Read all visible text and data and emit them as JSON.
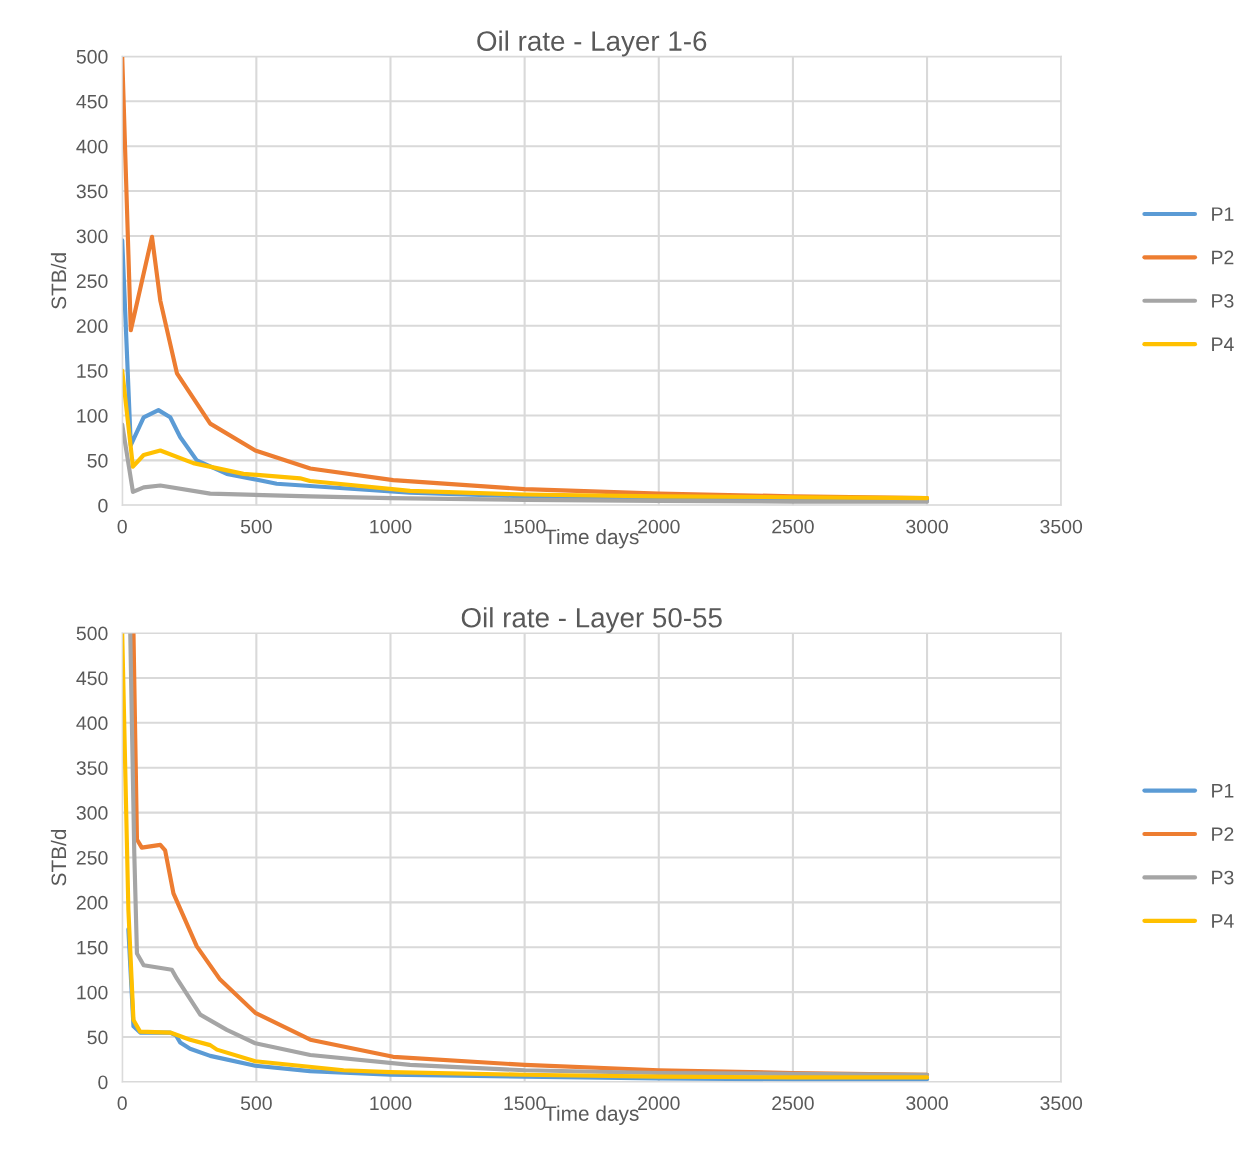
{
  "chart_data": [
    {
      "type": "line",
      "title": "Oil rate - Layer 1-6",
      "xlabel": "Time days",
      "ylabel": "STB/d",
      "xlim": [
        0,
        3500
      ],
      "xticks": [
        0,
        500,
        1000,
        1500,
        2000,
        2500,
        3000,
        3500
      ],
      "ylim": [
        0,
        500
      ],
      "yticks": [
        0,
        50,
        100,
        150,
        200,
        250,
        300,
        350,
        400,
        450,
        500
      ],
      "grid": true,
      "legend": "right",
      "marker": "none",
      "line_style": "solid",
      "series": [
        {
          "name": "P1",
          "color": "#5b9bd5",
          "x": [
            0,
            32,
            80,
            135,
            179,
            216,
            278,
            390,
            576,
            1073,
            1500,
            2000,
            2500,
            3000
          ],
          "values": [
            295,
            67,
            98,
            106,
            98,
            76,
            50,
            35,
            24,
            14,
            10,
            8,
            7,
            6
          ]
        },
        {
          "name": "P2",
          "color": "#ed7d31",
          "x": [
            0,
            32,
            111,
            142,
            204,
            328,
            496,
            701,
            1010,
            1500,
            2000,
            2500,
            3000
          ],
          "values": [
            500,
            195,
            299,
            228,
            147,
            91,
            61,
            41,
            28,
            18,
            13,
            10,
            8
          ]
        },
        {
          "name": "P3",
          "color": "#a5a5a5",
          "x": [
            0,
            40,
            80,
            142,
            328,
            700,
            1000,
            1500,
            2000,
            2500,
            3000
          ],
          "values": [
            90,
            15,
            20,
            22,
            13,
            10,
            8,
            6,
            5,
            4,
            4
          ]
        },
        {
          "name": "P4",
          "color": "#ffc000",
          "x": [
            0,
            40,
            80,
            142,
            265,
            452,
            663,
            700,
            1073,
            1500,
            2000,
            2500,
            3000
          ],
          "values": [
            150,
            43,
            56,
            61,
            47,
            35,
            30,
            27,
            16,
            12,
            10,
            9,
            8
          ]
        }
      ]
    },
    {
      "type": "line",
      "title": "Oil rate - Layer 50-55",
      "xlabel": "Time days",
      "ylabel": "STB/d",
      "xlim": [
        0,
        3500
      ],
      "xticks": [
        0,
        500,
        1000,
        1500,
        2000,
        2500,
        3000,
        3500
      ],
      "ylim": [
        0,
        500
      ],
      "yticks": [
        0,
        50,
        100,
        150,
        200,
        250,
        300,
        350,
        400,
        450,
        500
      ],
      "grid": true,
      "legend": "right",
      "marker": "none",
      "line_style": "solid",
      "series": [
        {
          "name": "P1",
          "color": "#5b9bd5",
          "x": [
            23,
            42,
            67,
            179,
            200,
            216,
            253,
            328,
            496,
            700,
            1000,
            1500,
            2000,
            2500,
            3000
          ],
          "values": [
            170,
            62,
            55,
            55,
            52,
            44,
            37,
            29,
            18,
            12,
            8,
            6,
            4,
            3,
            3
          ]
        },
        {
          "name": "P2",
          "color": "#ed7d31",
          "x": [
            42,
            55,
            73,
            142,
            160,
            191,
            278,
            365,
            496,
            701,
            1010,
            1500,
            2000,
            2500,
            3000
          ],
          "values": [
            500,
            270,
            261,
            264,
            258,
            210,
            151,
            114,
            77,
            47,
            28,
            19,
            13,
            10,
            8
          ]
        },
        {
          "name": "P3",
          "color": "#a5a5a5",
          "x": [
            30,
            45,
            55,
            80,
            185,
            204,
            291,
            390,
            496,
            701,
            1073,
            1500,
            2000,
            2500,
            3000
          ],
          "values": [
            500,
            255,
            143,
            130,
            125,
            115,
            75,
            58,
            43,
            30,
            19,
            13,
            10,
            9,
            8
          ]
        },
        {
          "name": "P4",
          "color": "#ffc000",
          "x": [
            0,
            23,
            42,
            67,
            179,
            253,
            328,
            353,
            496,
            825,
            1000,
            1500,
            2000,
            2500,
            3000
          ],
          "values": [
            500,
            192,
            69,
            56,
            55,
            47,
            41,
            36,
            23,
            13,
            11,
            8,
            6,
            5,
            5
          ]
        }
      ]
    }
  ]
}
